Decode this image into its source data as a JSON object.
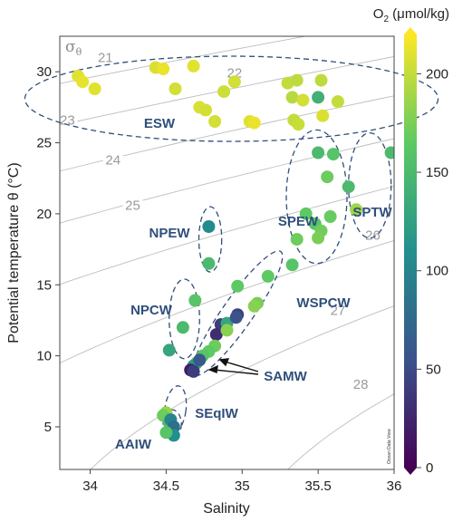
{
  "chart_data": {
    "type": "scatter",
    "xlabel": "Salinity",
    "ylabel": "Potential temperature θ (°C)",
    "xlim": [
      33.8,
      36.0
    ],
    "ylim": [
      2.0,
      32.5
    ],
    "x_ticks": [
      "34",
      "34.5",
      "35",
      "35.5",
      "36"
    ],
    "y_ticks": [
      "5",
      "10",
      "15",
      "20",
      "25",
      "30"
    ],
    "x_tick_values": [
      34,
      34.5,
      35,
      35.5,
      36
    ],
    "y_tick_values": [
      5,
      10,
      15,
      20,
      25,
      30
    ],
    "grid": false,
    "colorbar": {
      "label_base": "O",
      "label_sub": "2",
      "label_rest": " (μmol/kg)",
      "min": 0,
      "max": 220,
      "ticks": [
        "0",
        "50",
        "100",
        "150",
        "200"
      ],
      "tick_values": [
        0,
        50,
        100,
        150,
        200
      ],
      "colors": [
        "#440154",
        "#3b528b",
        "#21908d",
        "#5dc963",
        "#fde725"
      ]
    },
    "isopycnal_symbol": "σ",
    "isopycnal_symbol_sub": "θ",
    "isopycnal_labels": [
      "21",
      "22",
      "23",
      "24",
      "25",
      "26",
      "27",
      "28"
    ],
    "isopycnal_values": [
      21,
      22,
      23,
      24,
      25,
      26,
      27,
      28
    ],
    "water_masses": [
      "ESW",
      "SPEW",
      "SPTW",
      "NPEW",
      "NPCW",
      "WSPCW",
      "SAMW",
      "SEqIW",
      "AAIW"
    ],
    "watermark": "Ocean Data View",
    "points": [
      {
        "x": 33.92,
        "y": 29.7,
        "o2": 210
      },
      {
        "x": 33.95,
        "y": 29.3,
        "o2": 212
      },
      {
        "x": 34.03,
        "y": 28.8,
        "o2": 210
      },
      {
        "x": 34.43,
        "y": 30.3,
        "o2": 208
      },
      {
        "x": 34.48,
        "y": 30.2,
        "o2": 213
      },
      {
        "x": 34.56,
        "y": 28.8,
        "o2": 205
      },
      {
        "x": 34.68,
        "y": 30.4,
        "o2": 210
      },
      {
        "x": 34.72,
        "y": 27.5,
        "o2": 208
      },
      {
        "x": 34.76,
        "y": 27.3,
        "o2": 206
      },
      {
        "x": 34.82,
        "y": 26.5,
        "o2": 205
      },
      {
        "x": 34.88,
        "y": 28.6,
        "o2": 203
      },
      {
        "x": 34.95,
        "y": 29.3,
        "o2": 205
      },
      {
        "x": 35.05,
        "y": 26.5,
        "o2": 210
      },
      {
        "x": 35.08,
        "y": 26.4,
        "o2": 213
      },
      {
        "x": 35.3,
        "y": 29.2,
        "o2": 200
      },
      {
        "x": 35.33,
        "y": 28.2,
        "o2": 196
      },
      {
        "x": 35.36,
        "y": 29.4,
        "o2": 198
      },
      {
        "x": 35.4,
        "y": 28.0,
        "o2": 205
      },
      {
        "x": 35.34,
        "y": 26.6,
        "o2": 200
      },
      {
        "x": 35.37,
        "y": 26.3,
        "o2": 202
      },
      {
        "x": 35.5,
        "y": 28.2,
        "o2": 140
      },
      {
        "x": 35.52,
        "y": 29.4,
        "o2": 198
      },
      {
        "x": 35.53,
        "y": 26.9,
        "o2": 208
      },
      {
        "x": 35.63,
        "y": 27.9,
        "o2": 200
      },
      {
        "x": 35.5,
        "y": 24.3,
        "o2": 150
      },
      {
        "x": 35.6,
        "y": 24.2,
        "o2": 160
      },
      {
        "x": 35.56,
        "y": 22.6,
        "o2": 170
      },
      {
        "x": 35.42,
        "y": 20.0,
        "o2": 165
      },
      {
        "x": 35.48,
        "y": 19.3,
        "o2": 160
      },
      {
        "x": 35.58,
        "y": 19.8,
        "o2": 168
      },
      {
        "x": 35.52,
        "y": 18.8,
        "o2": 172
      },
      {
        "x": 35.5,
        "y": 18.3,
        "o2": 175
      },
      {
        "x": 35.36,
        "y": 18.2,
        "o2": 170
      },
      {
        "x": 35.7,
        "y": 21.9,
        "o2": 150
      },
      {
        "x": 35.75,
        "y": 20.3,
        "o2": 188
      },
      {
        "x": 35.98,
        "y": 24.3,
        "o2": 150
      },
      {
        "x": 34.78,
        "y": 19.1,
        "o2": 105
      },
      {
        "x": 34.78,
        "y": 16.5,
        "o2": 150
      },
      {
        "x": 34.69,
        "y": 13.9,
        "o2": 160
      },
      {
        "x": 34.61,
        "y": 12.0,
        "o2": 150
      },
      {
        "x": 34.52,
        "y": 10.4,
        "o2": 130
      },
      {
        "x": 34.86,
        "y": 12.2,
        "o2": 40
      },
      {
        "x": 34.9,
        "y": 12.3,
        "o2": 130
      },
      {
        "x": 34.97,
        "y": 12.9,
        "o2": 45
      },
      {
        "x": 34.96,
        "y": 12.7,
        "o2": 55
      },
      {
        "x": 34.83,
        "y": 11.5,
        "o2": 30
      },
      {
        "x": 34.97,
        "y": 14.9,
        "o2": 165
      },
      {
        "x": 35.1,
        "y": 13.7,
        "o2": 175
      },
      {
        "x": 35.08,
        "y": 13.5,
        "o2": 180
      },
      {
        "x": 35.17,
        "y": 15.6,
        "o2": 165
      },
      {
        "x": 35.33,
        "y": 16.4,
        "o2": 160
      },
      {
        "x": 34.9,
        "y": 11.8,
        "o2": 180
      },
      {
        "x": 34.82,
        "y": 10.7,
        "o2": 170
      },
      {
        "x": 34.78,
        "y": 10.3,
        "o2": 165
      },
      {
        "x": 34.74,
        "y": 10.0,
        "o2": 160
      },
      {
        "x": 34.7,
        "y": 9.5,
        "o2": 150
      },
      {
        "x": 34.68,
        "y": 9.3,
        "o2": 120
      },
      {
        "x": 34.72,
        "y": 9.7,
        "o2": 60
      },
      {
        "x": 34.66,
        "y": 9.0,
        "o2": 20
      },
      {
        "x": 34.68,
        "y": 8.9,
        "o2": 40
      },
      {
        "x": 34.5,
        "y": 6.0,
        "o2": 185
      },
      {
        "x": 34.48,
        "y": 5.8,
        "o2": 170
      },
      {
        "x": 34.52,
        "y": 5.3,
        "o2": 150
      },
      {
        "x": 34.53,
        "y": 5.5,
        "o2": 100
      },
      {
        "x": 34.55,
        "y": 5.0,
        "o2": 80
      },
      {
        "x": 34.55,
        "y": 4.4,
        "o2": 110
      },
      {
        "x": 34.5,
        "y": 4.6,
        "o2": 160
      }
    ]
  }
}
